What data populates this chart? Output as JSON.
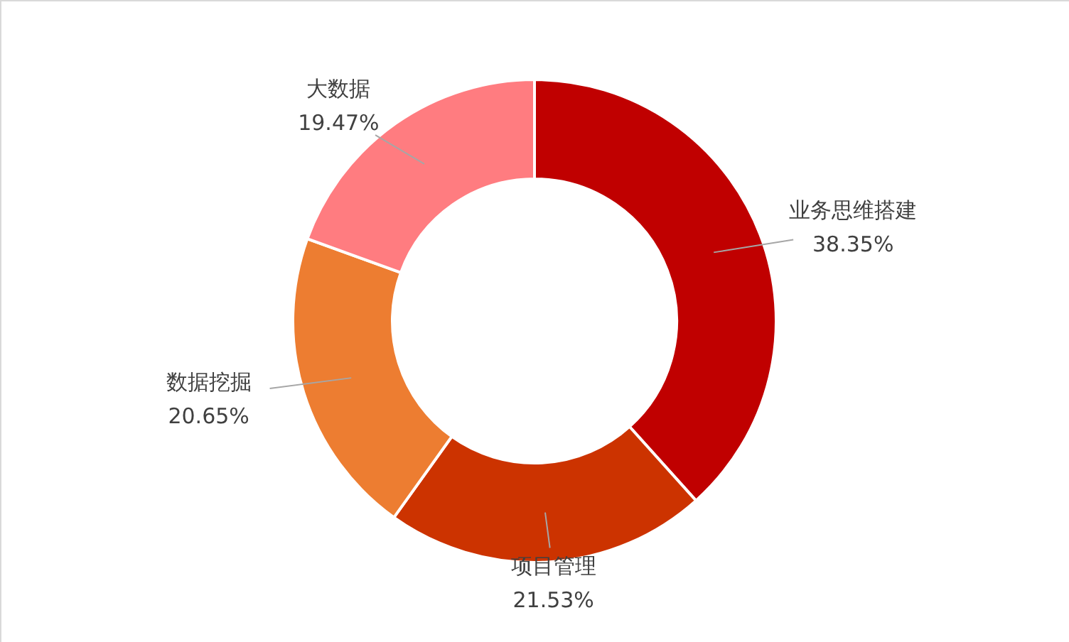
{
  "chart_data": {
    "type": "donut",
    "categories": [
      "业务思维搭建",
      "项目管理",
      "数据挖掘",
      "大数据"
    ],
    "values": [
      38.35,
      21.53,
      20.65,
      19.47
    ],
    "colors": [
      "#c00000",
      "#cc3300",
      "#ed7d31",
      "#ff7c80"
    ],
    "value_labels": [
      "38.35%",
      "21.53%",
      "20.65%",
      "19.47%"
    ]
  }
}
